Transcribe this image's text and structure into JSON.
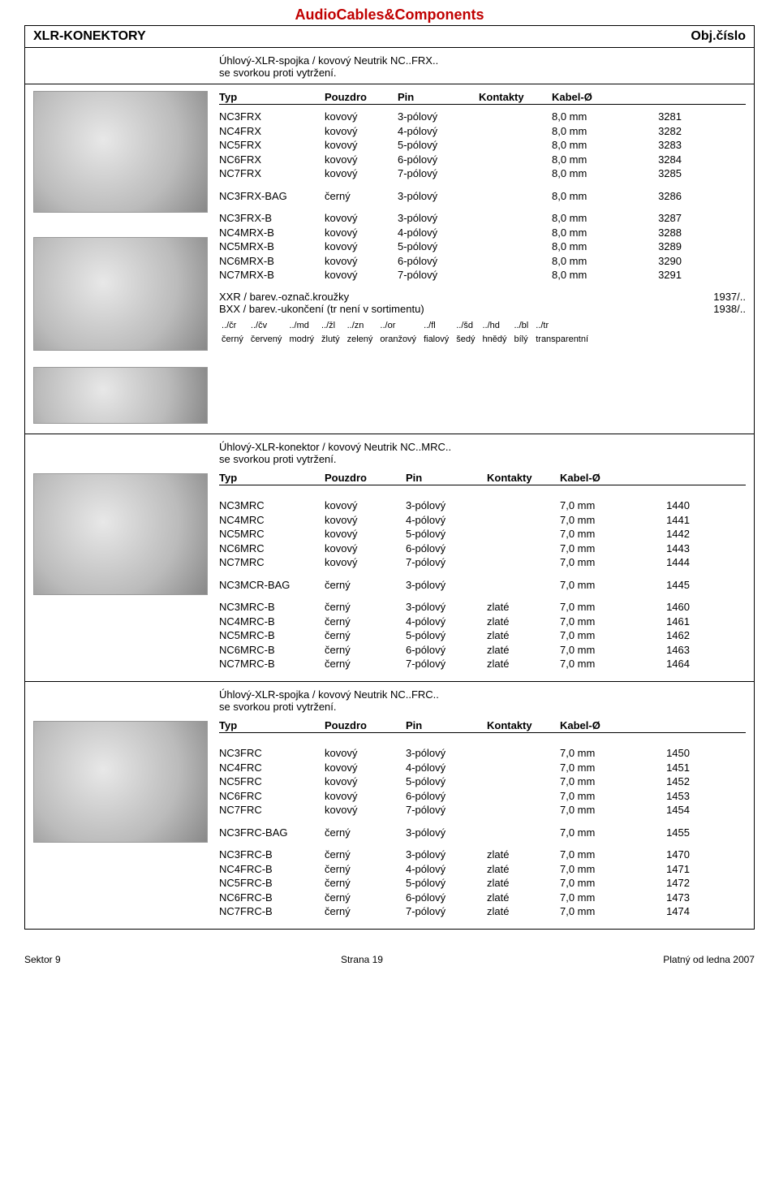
{
  "header": {
    "company": "AudioCables&Components",
    "section": "XLR-KONEKTORY",
    "objcol": "Obj.číslo"
  },
  "tableHeaders": {
    "typ": "Typ",
    "pouzdro": "Pouzdro",
    "pin": "Pin",
    "kontakty": "Kontakty",
    "kabel": "Kabel-Ø"
  },
  "sec1": {
    "title1": "Úhlový-XLR-spojka / kovový Neutrik NC..FRX..",
    "title2": "se svorkou proti vytržení.",
    "rowsA": [
      {
        "typ": "NC3FRX",
        "pou": "kovový",
        "pin": "3-pólový",
        "kab": "8,0 mm",
        "obj": "3281"
      },
      {
        "typ": "NC4FRX",
        "pou": "kovový",
        "pin": "4-pólový",
        "kab": "8,0 mm",
        "obj": "3282"
      },
      {
        "typ": "NC5FRX",
        "pou": "kovový",
        "pin": "5-pólový",
        "kab": "8,0 mm",
        "obj": "3283"
      },
      {
        "typ": "NC6FRX",
        "pou": "kovový",
        "pin": "6-pólový",
        "kab": "8,0 mm",
        "obj": "3284"
      },
      {
        "typ": "NC7FRX",
        "pou": "kovový",
        "pin": "7-pólový",
        "kab": "8,0 mm",
        "obj": "3285"
      }
    ],
    "rowBag": {
      "typ": "NC3FRX-BAG",
      "pou": "černý",
      "pin": "3-pólový",
      "kab": "8,0 mm",
      "obj": "3286"
    },
    "rowsB": [
      {
        "typ": "NC3FRX-B",
        "pou": "kovový",
        "pin": "3-pólový",
        "kab": "8,0 mm",
        "obj": "3287"
      },
      {
        "typ": "NC4MRX-B",
        "pou": "kovový",
        "pin": "4-pólový",
        "kab": "8,0 mm",
        "obj": "3288"
      },
      {
        "typ": "NC5MRX-B",
        "pou": "kovový",
        "pin": "5-pólový",
        "kab": "8,0 mm",
        "obj": "3289"
      },
      {
        "typ": "NC6MRX-B",
        "pou": "kovový",
        "pin": "6-pólový",
        "kab": "8,0 mm",
        "obj": "3290"
      },
      {
        "typ": "NC7MRX-B",
        "pou": "kovový",
        "pin": "7-pólový",
        "kab": "8,0 mm",
        "obj": "3291"
      }
    ],
    "annot1_l": "XXR / barev.-označ.kroužky",
    "annot1_r": "1937/..",
    "annot2_l": "BXX / barev.-ukončení (tr není v sortimentu)",
    "annot2_r": "1938/..",
    "codes1": [
      "../čr",
      "../čv",
      "../md",
      "../žl",
      "../zn",
      "../or",
      "../fl",
      "../šd",
      "../hd",
      "../bl",
      "../tr"
    ],
    "codes2": [
      "černý",
      "červený",
      "modrý",
      "žlutý",
      "zelený",
      "oranžový",
      "fialový",
      "šedý",
      "hnědý",
      "bílý",
      "transparentní"
    ]
  },
  "sec2": {
    "title1": "Úhlový-XLR-konektor / kovový Neutrik NC..MRC..",
    "title2": "se svorkou proti vytržení.",
    "rowsA": [
      {
        "typ": "NC3MRC",
        "pou": "kovový",
        "pin": "3-pólový",
        "kab": "7,0 mm",
        "obj": "1440"
      },
      {
        "typ": "NC4MRC",
        "pou": "kovový",
        "pin": "4-pólový",
        "kab": "7,0 mm",
        "obj": "1441"
      },
      {
        "typ": "NC5MRC",
        "pou": "kovový",
        "pin": "5-pólový",
        "kab": "7,0 mm",
        "obj": "1442"
      },
      {
        "typ": "NC6MRC",
        "pou": "kovový",
        "pin": "6-pólový",
        "kab": "7,0 mm",
        "obj": "1443"
      },
      {
        "typ": "NC7MRC",
        "pou": "kovový",
        "pin": "7-pólový",
        "kab": "7,0 mm",
        "obj": "1444"
      }
    ],
    "rowBag": {
      "typ": "NC3MCR-BAG",
      "pou": "černý",
      "pin": "3-pólový",
      "kab": "7,0 mm",
      "obj": "1445"
    },
    "rowsB": [
      {
        "typ": "NC3MRC-B",
        "pou": "černý",
        "pin": "3-pólový",
        "kon": "zlaté",
        "kab": "7,0 mm",
        "obj": "1460"
      },
      {
        "typ": "NC4MRC-B",
        "pou": "černý",
        "pin": "4-pólový",
        "kon": "zlaté",
        "kab": "7,0 mm",
        "obj": "1461"
      },
      {
        "typ": "NC5MRC-B",
        "pou": "černý",
        "pin": "5-pólový",
        "kon": "zlaté",
        "kab": "7,0 mm",
        "obj": "1462"
      },
      {
        "typ": "NC6MRC-B",
        "pou": "černý",
        "pin": "6-pólový",
        "kon": "zlaté",
        "kab": "7,0 mm",
        "obj": "1463"
      },
      {
        "typ": "NC7MRC-B",
        "pou": "černý",
        "pin": "7-pólový",
        "kon": "zlaté",
        "kab": "7,0 mm",
        "obj": "1464"
      }
    ]
  },
  "sec3": {
    "title1": "Úhlový-XLR-spojka / kovový Neutrik NC..FRC..",
    "title2": "se svorkou proti vytržení.",
    "rowsA": [
      {
        "typ": "NC3FRC",
        "pou": "kovový",
        "pin": "3-pólový",
        "kab": "7,0 mm",
        "obj": "1450"
      },
      {
        "typ": "NC4FRC",
        "pou": "kovový",
        "pin": "4-pólový",
        "kab": "7,0 mm",
        "obj": "1451"
      },
      {
        "typ": "NC5FRC",
        "pou": "kovový",
        "pin": "5-pólový",
        "kab": "7,0 mm",
        "obj": "1452"
      },
      {
        "typ": "NC6FRC",
        "pou": "kovový",
        "pin": "6-pólový",
        "kab": "7,0 mm",
        "obj": "1453"
      },
      {
        "typ": "NC7FRC",
        "pou": "kovový",
        "pin": "7-pólový",
        "kab": "7,0 mm",
        "obj": "1454"
      }
    ],
    "rowBag": {
      "typ": "NC3FRC-BAG",
      "pou": "černý",
      "pin": "3-pólový",
      "kab": "7,0 mm",
      "obj": "1455"
    },
    "rowsB": [
      {
        "typ": "NC3FRC-B",
        "pou": "černý",
        "pin": "3-pólový",
        "kon": "zlaté",
        "kab": "7,0 mm",
        "obj": "1470"
      },
      {
        "typ": "NC4FRC-B",
        "pou": "černý",
        "pin": "4-pólový",
        "kon": "zlaté",
        "kab": "7,0 mm",
        "obj": "1471"
      },
      {
        "typ": "NC5FRC-B",
        "pou": "černý",
        "pin": "5-pólový",
        "kon": "zlaté",
        "kab": "7,0 mm",
        "obj": "1472"
      },
      {
        "typ": "NC6FRC-B",
        "pou": "černý",
        "pin": "6-pólový",
        "kon": "zlaté",
        "kab": "7,0 mm",
        "obj": "1473"
      },
      {
        "typ": "NC7FRC-B",
        "pou": "černý",
        "pin": "7-pólový",
        "kon": "zlaté",
        "kab": "7,0 mm",
        "obj": "1474"
      }
    ]
  },
  "footer": {
    "left": "Sektor 9",
    "center": "Strana 19",
    "right": "Platný od ledna  2007"
  }
}
